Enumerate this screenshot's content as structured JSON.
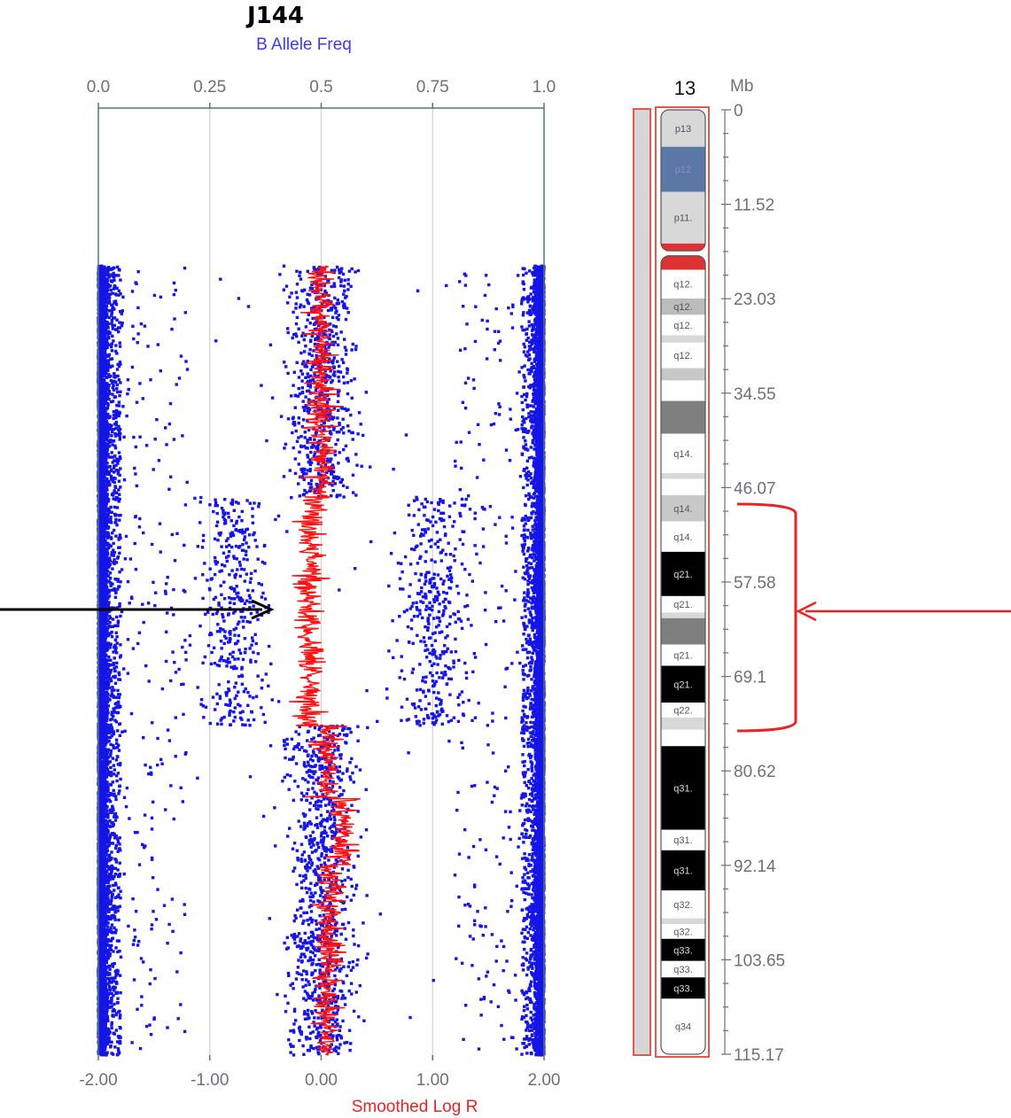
{
  "sample": "J144",
  "chart_data": {
    "type": "scatter",
    "title": "J144",
    "top_axis": {
      "label": "B Allele Freq",
      "range": [
        0.0,
        1.0
      ],
      "ticks": [
        "0.0",
        "0.25",
        "0.5",
        "0.75",
        "1.0"
      ]
    },
    "bottom_axis": {
      "label": "Smoothed Log R",
      "range": [
        -2.0,
        2.0
      ],
      "ticks": [
        "-2.00",
        "-1.00",
        "0.00",
        "1.00",
        "2.00"
      ]
    },
    "y_axis": {
      "label": "Mb",
      "range": [
        0,
        115.17
      ],
      "ticks": [
        "0",
        "11.52",
        "23.03",
        "34.55",
        "46.07",
        "57.58",
        "69.1",
        "80.62",
        "92.14",
        "103.65",
        "115.17"
      ]
    },
    "grid": true,
    "data_start_mb": 19.2,
    "series": [
      {
        "color": "#1515e6",
        "segments": [
          {
            "mb": [
              19.2,
              47.3
            ],
            "baf_bands": [
              0.0,
              0.5,
              1.0
            ]
          },
          {
            "mb": [
              47.3,
              75.1
            ],
            "baf_bands": [
              0.0,
              0.3,
              0.75,
              1.0
            ]
          },
          {
            "mb": [
              75.1,
              115.17
            ],
            "baf_bands": [
              0.0,
              0.5,
              1.0
            ]
          }
        ]
      },
      {
        "color": "#ff1111",
        "segments": [
          {
            "mb": [
              19.2,
              47.3
            ],
            "logr": 0.0
          },
          {
            "mb": [
              47.3,
              75.1
            ],
            "logr": -0.1
          },
          {
            "mb": [
              75.1,
              84.0
            ],
            "logr": 0.05
          },
          {
            "mb": [
              84.0,
              92.0
            ],
            "logr": 0.2
          },
          {
            "mb": [
              92.0,
              100.0
            ],
            "logr": 0.08
          },
          {
            "mb": [
              100.0,
              115.17
            ],
            "logr": 0.05
          }
        ]
      }
    ],
    "highlight_region_mb": [
      47.3,
      75.1
    ]
  },
  "ideogram": {
    "chromosome": "13",
    "unit": "Mb",
    "bands": [
      {
        "label": "p13",
        "start": 0.0,
        "end": 4.5,
        "color": "#d8d8d8",
        "text_color": "#555555"
      },
      {
        "label": "p12",
        "start": 4.5,
        "end": 10.0,
        "color": "#5a77a6",
        "text_color": "#7d94bb"
      },
      {
        "label": "p11.",
        "start": 10.0,
        "end": 16.3,
        "color": "#d8d8d8",
        "text_color": "#555555"
      },
      {
        "label": "",
        "start": 16.3,
        "end": 17.8,
        "color": "#dd3333",
        "text_color": "#555555"
      },
      {
        "label": "",
        "start": 17.8,
        "end": 19.5,
        "color": "#dd3333",
        "text_color": "#555555"
      },
      {
        "label": "q12.",
        "start": 19.5,
        "end": 23.0,
        "color": "#ffffff",
        "text_color": "#555555"
      },
      {
        "label": "q12.",
        "start": 23.0,
        "end": 25.0,
        "color": "#bbbbbb",
        "text_color": "#555555"
      },
      {
        "label": "q12.",
        "start": 25.0,
        "end": 27.5,
        "color": "#ffffff",
        "text_color": "#555555"
      },
      {
        "label": "",
        "start": 27.5,
        "end": 28.4,
        "color": "#d8d8d8",
        "text_color": "#555555"
      },
      {
        "label": "q12.",
        "start": 28.4,
        "end": 31.5,
        "color": "#ffffff",
        "text_color": "#555555"
      },
      {
        "label": "",
        "start": 31.5,
        "end": 33.0,
        "color": "#c8c8c8",
        "text_color": "#555555"
      },
      {
        "label": "",
        "start": 33.0,
        "end": 35.5,
        "color": "#ffffff",
        "text_color": "#555555"
      },
      {
        "label": "",
        "start": 35.5,
        "end": 39.5,
        "color": "#7f7f7f",
        "text_color": "#555555"
      },
      {
        "label": "q14.",
        "start": 39.5,
        "end": 44.3,
        "color": "#ffffff",
        "text_color": "#555555"
      },
      {
        "label": "",
        "start": 44.3,
        "end": 45.0,
        "color": "#d8d8d8",
        "text_color": "#555555"
      },
      {
        "label": "",
        "start": 45.0,
        "end": 47.0,
        "color": "#ffffff",
        "text_color": "#555555"
      },
      {
        "label": "q14.",
        "start": 47.0,
        "end": 50.2,
        "color": "#c8c8c8",
        "text_color": "#555555"
      },
      {
        "label": "q14.",
        "start": 50.2,
        "end": 53.9,
        "color": "#ffffff",
        "text_color": "#555555"
      },
      {
        "label": "q21.",
        "start": 53.9,
        "end": 59.3,
        "color": "#000000",
        "text_color": "#dddddd"
      },
      {
        "label": "q21.",
        "start": 59.3,
        "end": 61.3,
        "color": "#ffffff",
        "text_color": "#555555"
      },
      {
        "label": "",
        "start": 61.3,
        "end": 62.0,
        "color": "#d8d8d8",
        "text_color": "#555555"
      },
      {
        "label": "",
        "start": 62.0,
        "end": 65.2,
        "color": "#7f7f7f",
        "text_color": "#555555"
      },
      {
        "label": "q21.",
        "start": 65.2,
        "end": 67.8,
        "color": "#ffffff",
        "text_color": "#555555"
      },
      {
        "label": "q21.",
        "start": 67.8,
        "end": 72.3,
        "color": "#000000",
        "text_color": "#dddddd"
      },
      {
        "label": "q22.",
        "start": 72.3,
        "end": 74.1,
        "color": "#ffffff",
        "text_color": "#555555"
      },
      {
        "label": "",
        "start": 74.1,
        "end": 75.6,
        "color": "#d8d8d8",
        "text_color": "#555555"
      },
      {
        "label": "",
        "start": 75.6,
        "end": 77.6,
        "color": "#ffffff",
        "text_color": "#555555"
      },
      {
        "label": "q31.",
        "start": 77.6,
        "end": 87.8,
        "color": "#000000",
        "text_color": "#dddddd"
      },
      {
        "label": "q31.",
        "start": 87.8,
        "end": 90.3,
        "color": "#ffffff",
        "text_color": "#555555"
      },
      {
        "label": "q31.",
        "start": 90.3,
        "end": 95.2,
        "color": "#000000",
        "text_color": "#dddddd"
      },
      {
        "label": "q32.",
        "start": 95.2,
        "end": 98.6,
        "color": "#ffffff",
        "text_color": "#555555"
      },
      {
        "label": "",
        "start": 98.6,
        "end": 99.3,
        "color": "#d8d8d8",
        "text_color": "#555555"
      },
      {
        "label": "q32.",
        "start": 99.3,
        "end": 101.1,
        "color": "#ffffff",
        "text_color": "#555555"
      },
      {
        "label": "q33.",
        "start": 101.1,
        "end": 103.8,
        "color": "#000000",
        "text_color": "#dddddd"
      },
      {
        "label": "q33.",
        "start": 103.8,
        "end": 105.8,
        "color": "#ffffff",
        "text_color": "#555555"
      },
      {
        "label": "q33.",
        "start": 105.8,
        "end": 108.4,
        "color": "#000000",
        "text_color": "#dddddd"
      },
      {
        "label": "q34",
        "start": 108.4,
        "end": 115.17,
        "color": "#ffffff",
        "text_color": "#555555"
      }
    ]
  },
  "colors": {
    "baf": "#1515e6",
    "logr": "#ff1111",
    "arrow_left": "#000000",
    "arrow_right": "#ee2222",
    "frame": "#e0584f",
    "axis": "#557777"
  }
}
